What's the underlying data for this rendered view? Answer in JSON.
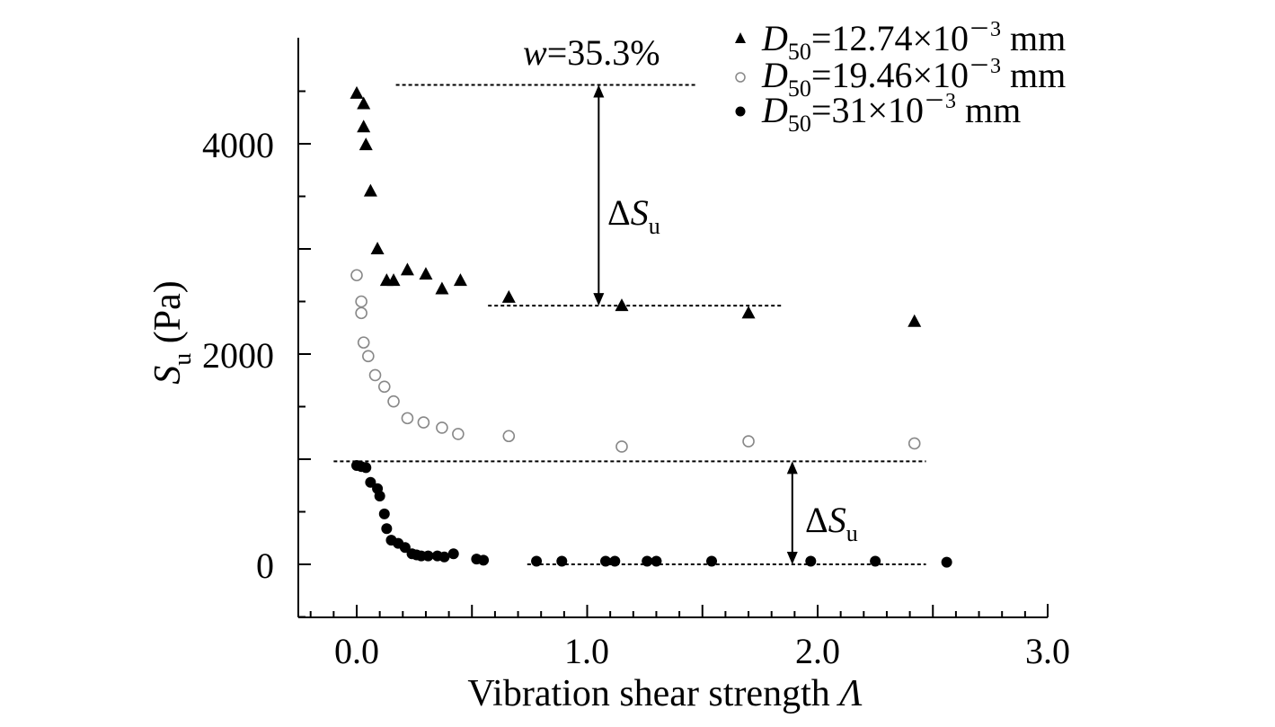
{
  "chart_data": {
    "type": "scatter",
    "xlabel": "Vibration shear strength",
    "xlabel_symbol": "Λ",
    "ylabel_symbol": "S",
    "ylabel_subscript": "u",
    "ylabel_unit": "(Pa)",
    "xlim": [
      -0.25,
      3.0
    ],
    "ylim": [
      -500,
      5000
    ],
    "x_ticks": [
      0.0,
      1.0,
      2.0,
      3.0
    ],
    "x_tick_labels": [
      "0.0",
      "1.0",
      "2.0",
      "3.0"
    ],
    "y_ticks": [
      0,
      2000,
      4000
    ],
    "y_tick_labels": [
      "0",
      "2000",
      "4000"
    ],
    "grid": false,
    "legend_position": "top-right",
    "series": [
      {
        "name": "D50=12.74×10⁻³ mm",
        "legend": {
          "sym": "D",
          "sub": "50",
          "text": "=12.74×10",
          "sup": "－3",
          "unit": " mm"
        },
        "marker": "triangle",
        "color": "#000000",
        "points": [
          [
            0.0,
            4480
          ],
          [
            0.03,
            4380
          ],
          [
            0.03,
            4160
          ],
          [
            0.04,
            3990
          ],
          [
            0.06,
            3550
          ],
          [
            0.09,
            3000
          ],
          [
            0.13,
            2700
          ],
          [
            0.16,
            2700
          ],
          [
            0.22,
            2800
          ],
          [
            0.3,
            2760
          ],
          [
            0.37,
            2620
          ],
          [
            0.45,
            2700
          ],
          [
            0.66,
            2540
          ],
          [
            1.15,
            2460
          ],
          [
            1.7,
            2390
          ],
          [
            2.42,
            2310
          ]
        ]
      },
      {
        "name": "D50=19.46×10⁻³ mm",
        "legend": {
          "sym": "D",
          "sub": "50",
          "text": "=19.46×10",
          "sup": "－3",
          "unit": " mm"
        },
        "marker": "open-circle",
        "color": "#888888",
        "points": [
          [
            0.0,
            2750
          ],
          [
            0.02,
            2500
          ],
          [
            0.02,
            2390
          ],
          [
            0.03,
            2110
          ],
          [
            0.05,
            1980
          ],
          [
            0.08,
            1800
          ],
          [
            0.12,
            1690
          ],
          [
            0.16,
            1550
          ],
          [
            0.22,
            1390
          ],
          [
            0.29,
            1350
          ],
          [
            0.37,
            1300
          ],
          [
            0.44,
            1240
          ],
          [
            0.66,
            1220
          ],
          [
            1.15,
            1120
          ],
          [
            1.7,
            1170
          ],
          [
            2.42,
            1150
          ]
        ]
      },
      {
        "name": "D50=31×10⁻³ mm",
        "legend": {
          "sym": "D",
          "sub": "50",
          "text": "=31×10",
          "sup": "－3",
          "unit": " mm"
        },
        "marker": "filled-circle",
        "color": "#000000",
        "points": [
          [
            0.0,
            940
          ],
          [
            0.02,
            930
          ],
          [
            0.04,
            920
          ],
          [
            0.06,
            780
          ],
          [
            0.09,
            720
          ],
          [
            0.1,
            650
          ],
          [
            0.12,
            480
          ],
          [
            0.13,
            340
          ],
          [
            0.15,
            230
          ],
          [
            0.18,
            200
          ],
          [
            0.21,
            160
          ],
          [
            0.24,
            100
          ],
          [
            0.26,
            90
          ],
          [
            0.28,
            80
          ],
          [
            0.31,
            80
          ],
          [
            0.35,
            80
          ],
          [
            0.38,
            70
          ],
          [
            0.42,
            100
          ],
          [
            0.52,
            50
          ],
          [
            0.55,
            40
          ],
          [
            0.78,
            30
          ],
          [
            0.89,
            30
          ],
          [
            1.08,
            30
          ],
          [
            1.12,
            30
          ],
          [
            1.26,
            30
          ],
          [
            1.3,
            30
          ],
          [
            1.54,
            30
          ],
          [
            1.97,
            30
          ],
          [
            2.25,
            30
          ],
          [
            2.56,
            20
          ]
        ]
      }
    ],
    "annotations": {
      "water_content": {
        "sym": "w",
        "value": "=35.3%"
      },
      "delta_label": {
        "delta": "Δ",
        "sym": "S",
        "sub": "u"
      },
      "upper_lines": [
        {
          "x1": 0.17,
          "x2": 1.47,
          "y": 4560
        },
        {
          "x1": 0.57,
          "x2": 1.85,
          "y": 2460
        }
      ],
      "upper_arrow": {
        "x": 1.05,
        "y1": 4560,
        "y2": 2460
      },
      "lower_lines": [
        {
          "x1": -0.1,
          "x2": 2.47,
          "y": 980
        },
        {
          "x1": 0.74,
          "x2": 2.47,
          "y": 0
        }
      ],
      "lower_arrow": {
        "x": 1.89,
        "y1": 980,
        "y2": 0
      }
    }
  }
}
